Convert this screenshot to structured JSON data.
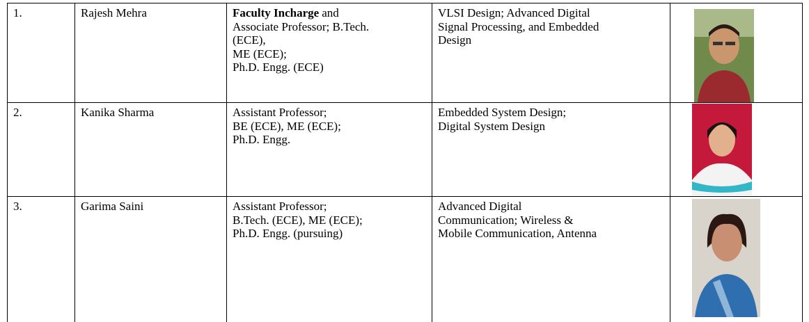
{
  "table": {
    "rows": [
      {
        "no": "1.",
        "name": "Rajesh Mehra",
        "designation": {
          "bold": "Faculty Incharge",
          "lines": [
            "and",
            "Associate Professor; B.Tech.",
            "(ECE),",
            "ME (ECE);",
            "Ph.D. Engg. (ECE)"
          ]
        },
        "specialization": [
          "VLSI Design; Advanced Digital",
          "Signal Processing, and Embedded",
          "Design"
        ]
      },
      {
        "no": "2.",
        "name": "Kanika Sharma",
        "designation": {
          "lines": [
            "Assistant Professor;",
            "BE (ECE), ME (ECE);",
            "Ph.D. Engg."
          ]
        },
        "specialization": [
          "Embedded System Design;",
          "Digital System Design"
        ]
      },
      {
        "no": "3.",
        "name": "Garima Saini",
        "designation": {
          "lines": [
            "Assistant Professor;",
            "B.Tech. (ECE), ME (ECE);",
            "Ph.D. Engg. (pursuing)"
          ]
        },
        "specialization": [
          "Advanced Digital",
          "Communication; Wireless &",
          "Mobile Communication, Antenna"
        ]
      }
    ]
  }
}
